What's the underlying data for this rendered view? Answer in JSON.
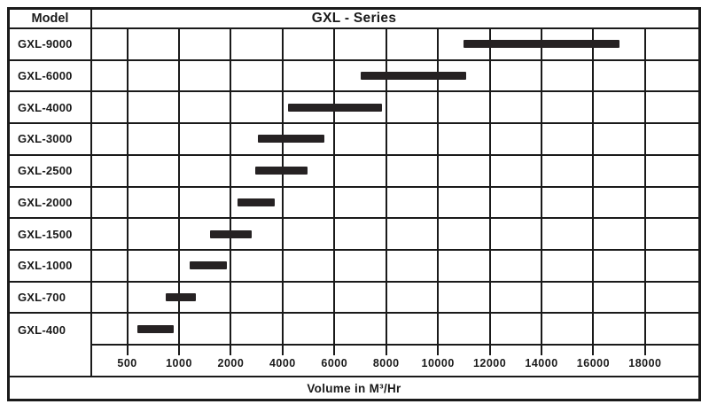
{
  "header": {
    "model_col": "Model",
    "title": "GXL - Series"
  },
  "axis": {
    "label": "Volume in M³/Hr"
  },
  "colors": {
    "line": "#1a1a1a",
    "bar": "#262223",
    "background": "#ffffff"
  },
  "chart_data": {
    "type": "bar",
    "orientation": "horizontal-range",
    "title": "GXL - Series",
    "xlabel": "Volume in M³/Hr",
    "x_ticks": [
      500,
      1000,
      2000,
      4000,
      6000,
      8000,
      10000,
      12000,
      14000,
      16000,
      18000
    ],
    "x_scale_note": "non-linear axis: ticks equally spaced despite unequal increments",
    "grid": true,
    "series": [
      {
        "model": "GXL-9000",
        "range": [
          11000,
          17000
        ]
      },
      {
        "model": "GXL-6000",
        "range": [
          7000,
          11100
        ]
      },
      {
        "model": "GXL-4000",
        "range": [
          4200,
          7850
        ]
      },
      {
        "model": "GXL-3000",
        "range": [
          3050,
          5600
        ]
      },
      {
        "model": "GXL-2500",
        "range": [
          2950,
          4950
        ]
      },
      {
        "model": "GXL-2000",
        "range": [
          2250,
          3700
        ]
      },
      {
        "model": "GXL-1500",
        "range": [
          1600,
          2800
        ]
      },
      {
        "model": "GXL-1000",
        "range": [
          1200,
          1930
        ]
      },
      {
        "model": "GXL-700",
        "range": [
          870,
          1330
        ]
      },
      {
        "model": "GXL-400",
        "range": [
          600,
          950
        ]
      }
    ]
  }
}
